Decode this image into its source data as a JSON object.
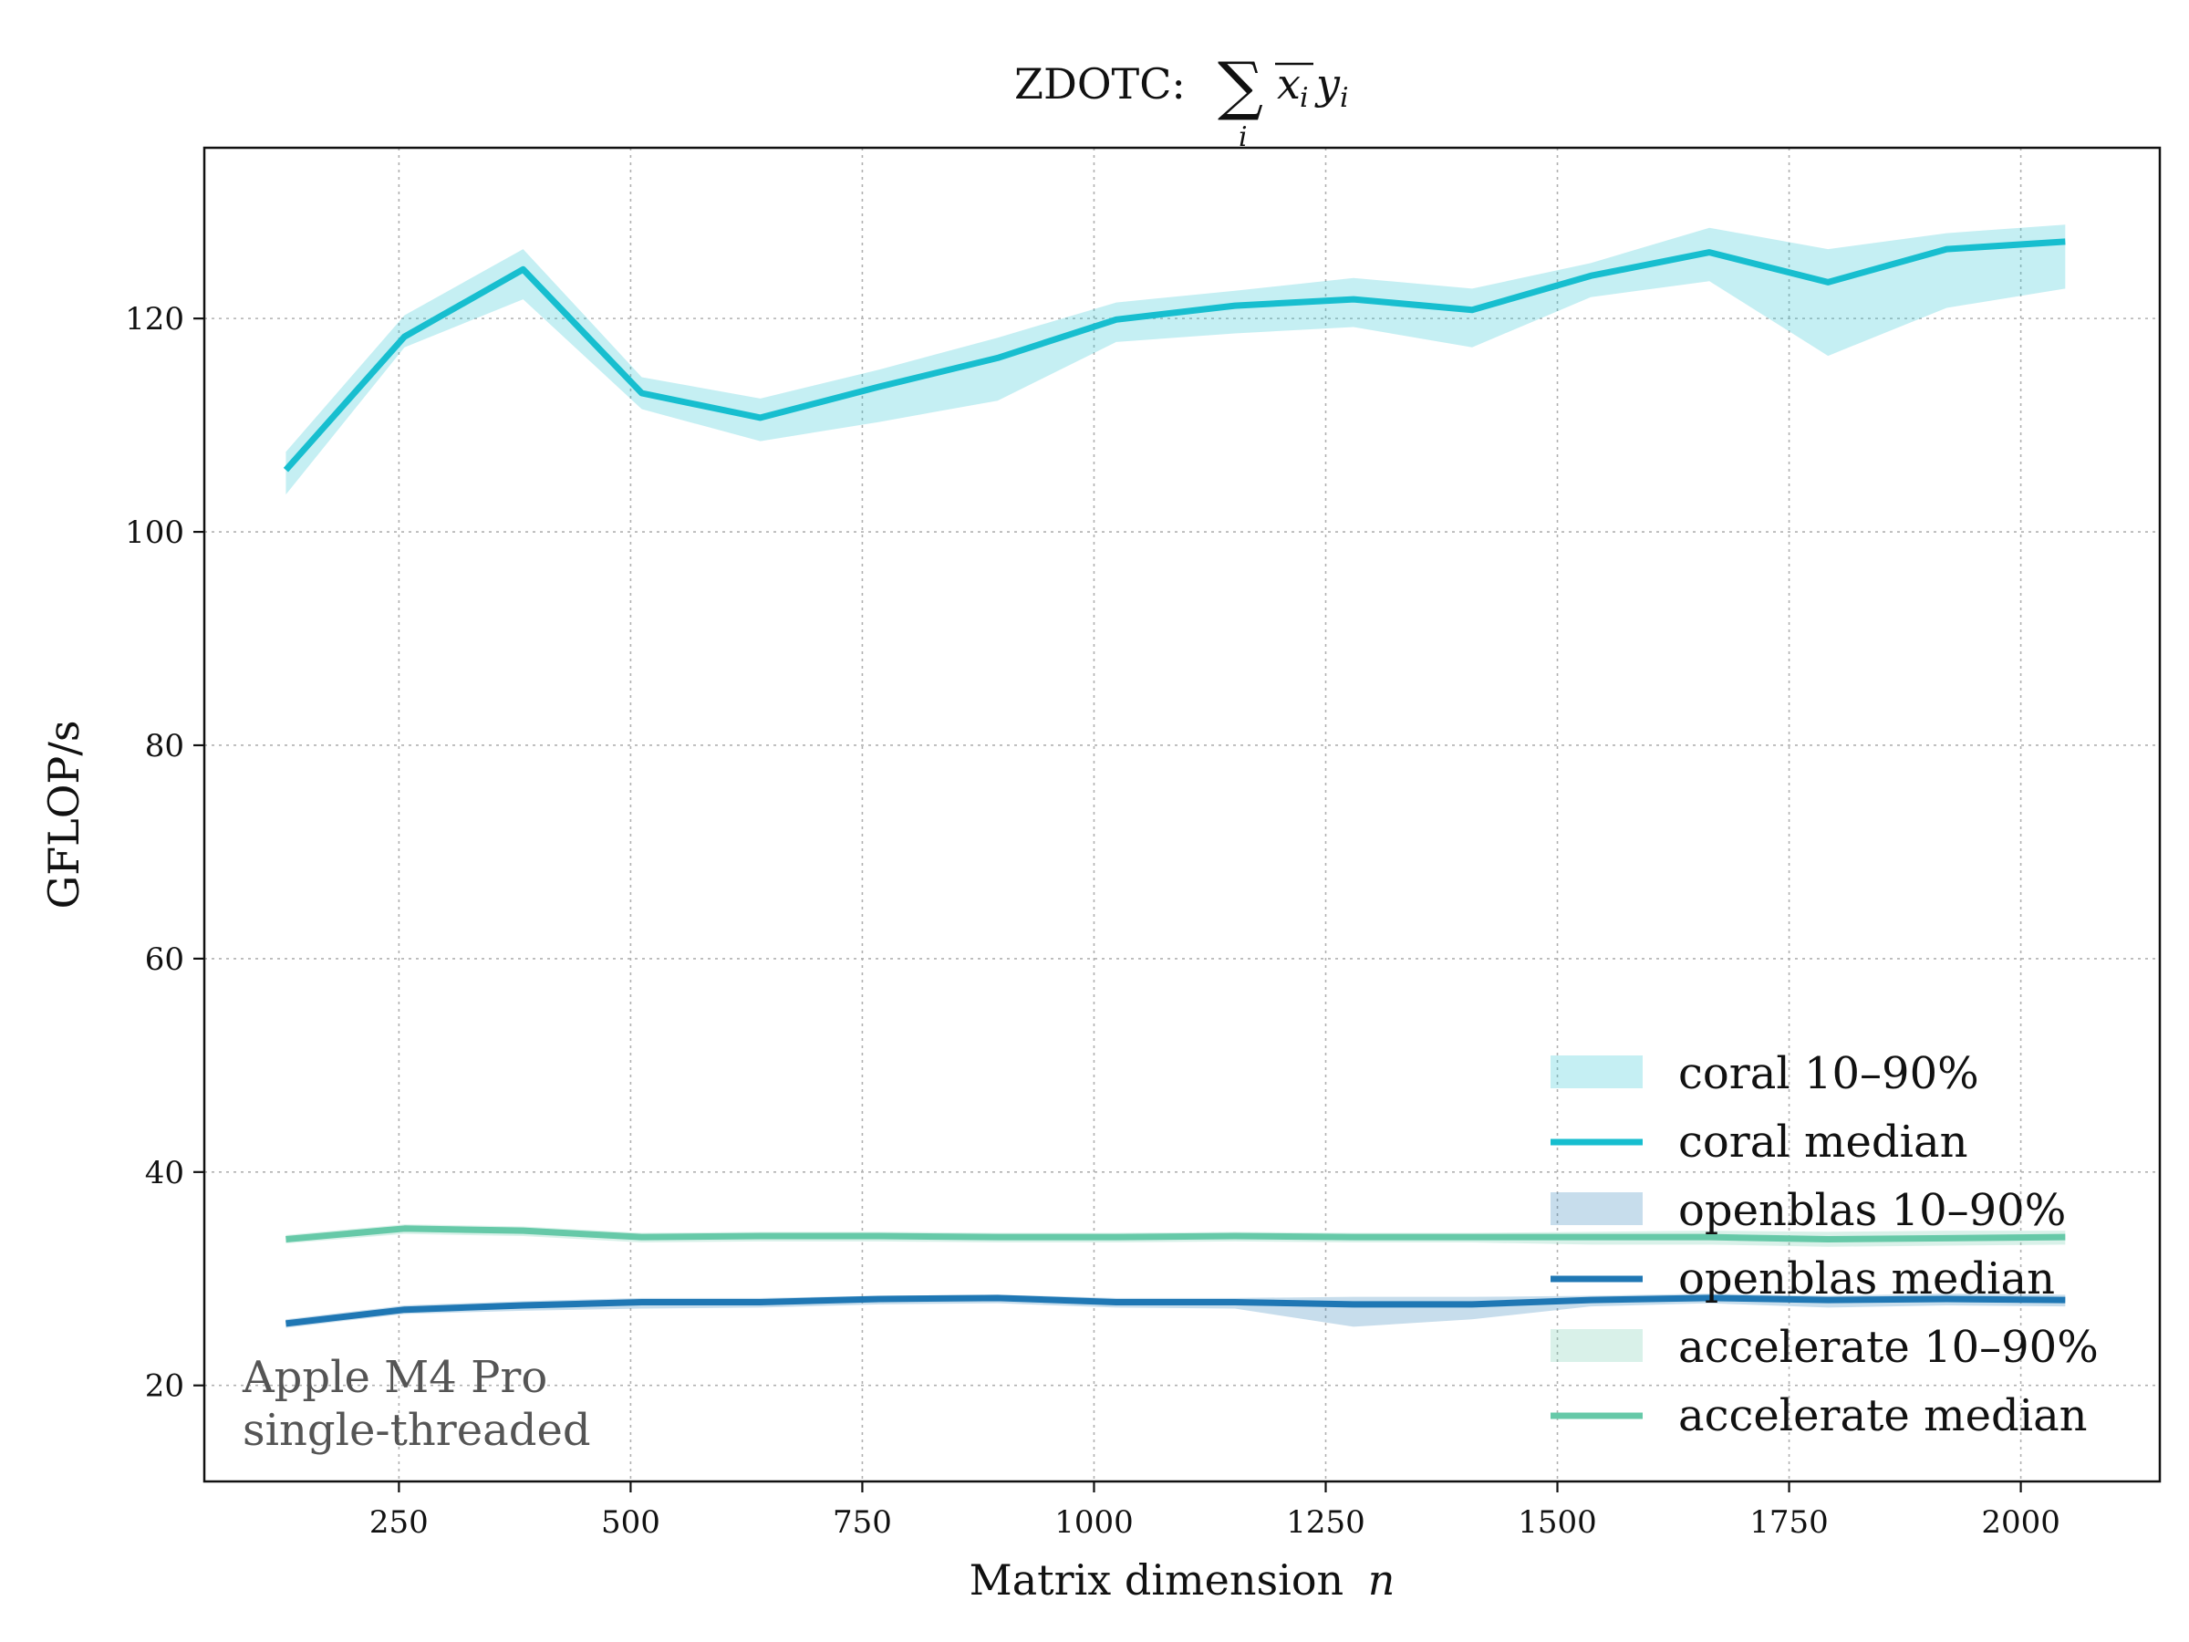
{
  "chart_data": {
    "type": "line",
    "title": "ZDOTC: ∑ x̅ᵢyᵢ",
    "title_parts": {
      "prefix": "ZDOTC:",
      "sum": "∑",
      "sub": "i",
      "xbar": "x",
      "xsub": "i",
      "y": "y",
      "ysub": "i"
    },
    "xlabel": "Matrix dimension",
    "xlabel_var": "n",
    "ylabel": "GFLOP/s",
    "xlim": [
      40,
      2150
    ],
    "ylim": [
      11,
      136
    ],
    "x_ticks": [
      250,
      500,
      750,
      1000,
      1250,
      1500,
      1750,
      2000
    ],
    "y_ticks": [
      20,
      40,
      60,
      80,
      100,
      120
    ],
    "grid": true,
    "legend_position": "bottom-right",
    "annotation": [
      "Apple M4 Pro",
      "single-threaded"
    ],
    "x": [
      128,
      256,
      384,
      512,
      640,
      768,
      896,
      1024,
      1152,
      1280,
      1408,
      1536,
      1664,
      1792,
      1920,
      2048
    ],
    "series": [
      {
        "name": "coral median",
        "band_name": "coral 10–90%",
        "color": "#17becf",
        "median": [
          105.8,
          118.3,
          124.6,
          113.0,
          110.7,
          113.6,
          116.3,
          119.9,
          121.2,
          121.8,
          120.8,
          124.0,
          126.2,
          123.4,
          126.5,
          127.2
        ],
        "p10": [
          103.5,
          117.3,
          121.8,
          111.5,
          108.5,
          110.3,
          112.3,
          117.8,
          118.6,
          119.2,
          117.3,
          122.0,
          123.5,
          116.5,
          121.0,
          122.8
        ],
        "p90": [
          107.5,
          120.3,
          126.5,
          114.5,
          112.5,
          115.2,
          118.2,
          121.5,
          122.6,
          123.8,
          122.8,
          125.2,
          128.5,
          126.5,
          128.0,
          128.8
        ]
      },
      {
        "name": "openblas median",
        "band_name": "openblas 10–90%",
        "color": "#1f77b4",
        "median": [
          25.8,
          27.1,
          27.5,
          27.8,
          27.8,
          28.1,
          28.2,
          27.8,
          27.8,
          27.6,
          27.6,
          28.0,
          28.2,
          28.0,
          28.1,
          28.0
        ],
        "p10": [
          25.4,
          26.7,
          27.0,
          27.2,
          27.3,
          27.6,
          27.7,
          27.3,
          27.2,
          25.5,
          26.2,
          27.4,
          27.7,
          27.3,
          27.5,
          27.4
        ],
        "p90": [
          26.2,
          27.5,
          27.9,
          28.2,
          28.2,
          28.4,
          28.5,
          28.2,
          28.2,
          28.3,
          28.3,
          28.4,
          28.6,
          28.4,
          28.6,
          28.5
        ]
      },
      {
        "name": "accelerate median",
        "band_name": "accelerate 10–90%",
        "color": "#66c9a8",
        "median": [
          33.7,
          34.7,
          34.5,
          33.9,
          34.0,
          34.0,
          33.9,
          33.9,
          34.0,
          33.9,
          33.9,
          33.9,
          33.9,
          33.7,
          33.8,
          33.9
        ],
        "p10": [
          33.3,
          34.2,
          34.0,
          33.4,
          33.5,
          33.5,
          33.4,
          33.4,
          33.5,
          33.4,
          33.4,
          33.2,
          33.2,
          33.0,
          33.1,
          33.2
        ],
        "p90": [
          34.1,
          35.1,
          34.9,
          34.3,
          34.4,
          34.4,
          34.3,
          34.3,
          34.4,
          34.3,
          34.3,
          34.4,
          34.5,
          34.4,
          34.5,
          34.5
        ]
      }
    ]
  }
}
